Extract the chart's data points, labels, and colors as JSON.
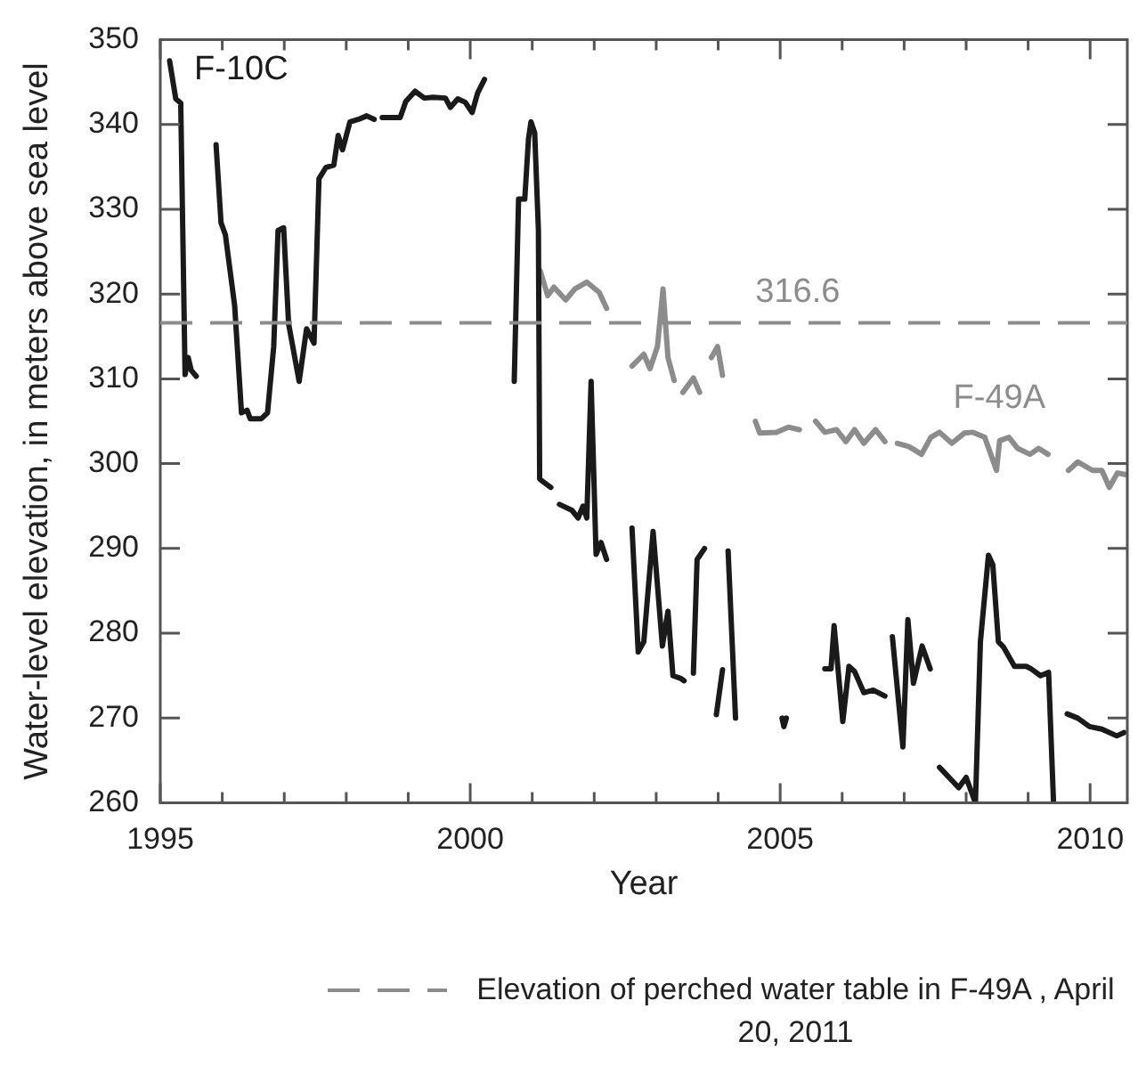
{
  "chart_data": {
    "type": "line",
    "xlabel": "Year",
    "ylabel": "Water-level elevation, in meters above sea level",
    "xlim": [
      1995,
      2010.6
    ],
    "xticks": [
      1995,
      {
        "value": 1996,
        "label": null
      },
      {
        "value": 1997,
        "label": null
      },
      {
        "value": 1998,
        "label": null
      },
      {
        "value": 1999,
        "label": null
      },
      2000,
      {
        "value": 2001,
        "label": null
      },
      {
        "value": 2002,
        "label": null
      },
      {
        "value": 2003,
        "label": null
      },
      {
        "value": 2004,
        "label": null
      },
      2005,
      {
        "value": 2006,
        "label": null
      },
      {
        "value": 2007,
        "label": null
      },
      {
        "value": 2008,
        "label": null
      },
      {
        "value": 2009,
        "label": null
      },
      2010
    ],
    "ylim": [
      260,
      350
    ],
    "yticks": [
      260,
      270,
      280,
      290,
      300,
      310,
      320,
      330,
      340,
      350
    ],
    "series": [
      {
        "name": "F-10C",
        "color": "#1a1a1a",
        "x": [
          1995.15,
          1995.25,
          1995.33,
          1995.4,
          1995.45,
          1995.5,
          1995.58,
          1995.75,
          1995.9,
          1995.98,
          1996.05,
          1996.2,
          1996.31,
          1996.4,
          1996.45,
          1996.63,
          1996.73,
          1996.83,
          1996.9,
          1996.99,
          1997.07,
          1997.24,
          1997.36,
          1997.48,
          1997.56,
          1997.67,
          1997.8,
          1997.87,
          1997.94,
          1998.06,
          1998.2,
          1998.33,
          1998.45,
          1998.52,
          1998.58,
          1998.87,
          1998.96,
          1999.11,
          1999.26,
          1999.4,
          1999.6,
          1999.68,
          1999.8,
          1999.92,
          2000.03,
          2000.12,
          2000.23,
          2000.5,
          2000.71,
          2000.78,
          2000.88,
          2000.94,
          2000.98,
          2001.04,
          2001.1,
          2001.12,
          2001.17,
          2001.3,
          2001.37,
          2001.44,
          2001.64,
          2001.74,
          2001.82,
          2001.88,
          2001.95,
          2002.03,
          2002.11,
          2002.2,
          2002.4,
          2002.61,
          2002.71,
          2002.8,
          2002.95,
          2003.1,
          2003.19,
          2003.27,
          2003.39,
          2003.45,
          2003.52,
          2003.6,
          2003.66,
          2003.78,
          2003.88,
          2003.97,
          2004.07,
          2004.12,
          2004.16,
          2004.28,
          2004.6,
          2005.03,
          2005.06,
          2005.1,
          2005.4,
          2005.72,
          2005.82,
          2005.87,
          2006.01,
          2006.11,
          2006.2,
          2006.35,
          2006.5,
          2006.69,
          2006.75,
          2006.81,
          2006.98,
          2007.06,
          2007.15,
          2007.29,
          2007.42,
          2007.5,
          2007.57,
          2007.88,
          2008.0,
          2008.15,
          2008.23,
          2008.36,
          2008.43,
          2008.52,
          2008.6,
          2008.78,
          2008.97,
          2009.05,
          2009.2,
          2009.33,
          2009.41,
          2009.5,
          2009.63,
          2009.8,
          2009.99,
          2010.19,
          2010.43,
          2010.55
        ],
        "values": [
          347.5,
          343,
          342.5,
          310.5,
          312.5,
          311,
          310.3,
          null,
          337.6,
          328.4,
          327,
          318.6,
          306,
          306.3,
          305.3,
          305.3,
          306,
          313.8,
          327.5,
          327.8,
          316.5,
          309.7,
          315.9,
          314.2,
          333.6,
          334.9,
          335.2,
          338.7,
          337,
          340.3,
          340.6,
          341,
          340.6,
          null,
          340.8,
          340.8,
          342.7,
          343.9,
          343.1,
          343.2,
          343.1,
          342,
          343,
          342.6,
          341.4,
          343.7,
          345.3,
          null,
          309.7,
          331.2,
          331.2,
          338.3,
          340.3,
          339,
          327.5,
          298.2,
          297.9,
          297.2,
          null,
          295.2,
          294.5,
          293.6,
          295,
          293.6,
          309.7,
          289.3,
          290.7,
          288.7,
          null,
          292.4,
          277.8,
          279,
          292,
          278.5,
          282.6,
          275,
          274.7,
          274.4,
          null,
          275.3,
          288.7,
          290,
          null,
          270.4,
          275.7,
          null,
          289.7,
          270,
          null,
          270,
          269,
          270,
          null,
          275.8,
          275.8,
          280.9,
          269.6,
          276.1,
          275.5,
          273,
          273.3,
          272.6,
          null,
          279.6,
          266.6,
          281.6,
          274.1,
          278.5,
          275.8,
          null,
          264.2,
          261.8,
          263,
          260,
          279,
          289.2,
          288.1,
          279,
          278.4,
          276.1,
          276.1,
          275.8,
          275,
          275.4,
          260,
          null,
          270.5,
          270,
          269,
          268.7,
          267.9,
          268.3
        ]
      },
      {
        "name": "F-49A",
        "color": "#8c8c8c",
        "x": [
          2001.13,
          2001.25,
          2001.35,
          2001.54,
          2001.69,
          2001.88,
          2002.08,
          2002.2,
          2002.4,
          2002.61,
          2002.8,
          2002.9,
          2003.02,
          2003.11,
          2003.19,
          2003.29,
          2003.36,
          2003.43,
          2003.6,
          2003.7,
          2003.8,
          2003.89,
          2003.99,
          2004.07,
          2004.3,
          2004.6,
          2004.67,
          2004.94,
          2005.13,
          2005.31,
          2005.45,
          2005.57,
          2005.72,
          2005.91,
          2006.06,
          2006.2,
          2006.35,
          2006.54,
          2006.69,
          2006.8,
          2006.89,
          2007.08,
          2007.28,
          2007.43,
          2007.57,
          2007.77,
          2007.97,
          2008.11,
          2008.3,
          2008.49,
          2008.54,
          2008.69,
          2008.83,
          2009.03,
          2009.17,
          2009.32,
          2009.5,
          2009.65,
          2009.8,
          2010.04,
          2010.19,
          2010.31,
          2010.44,
          2010.58
        ],
        "values": [
          322.7,
          319.8,
          320.8,
          319.3,
          320.6,
          321.4,
          320.2,
          318.3,
          null,
          311.5,
          312.9,
          311.2,
          313.8,
          320.6,
          312.5,
          309.8,
          null,
          308.4,
          310.1,
          308.4,
          null,
          312.5,
          313.8,
          310.4,
          null,
          305,
          303.6,
          303.7,
          304.3,
          304,
          null,
          305,
          303.7,
          304,
          302.6,
          304,
          302.4,
          304,
          302.6,
          null,
          302.4,
          302,
          301.1,
          303.1,
          303.7,
          302.4,
          303.6,
          303.7,
          303.1,
          299.2,
          302.7,
          303.1,
          301.8,
          301.1,
          301.8,
          301.1,
          null,
          299.2,
          300.2,
          299.2,
          299.2,
          297.2,
          298.9,
          298.7
        ]
      }
    ],
    "ref_lines": [
      {
        "axis": "y",
        "value": 316.6,
        "label": "Elevation of perched water table in F-49A , April 20, 2011",
        "color": "#8c8c8c",
        "line_style": "dashed"
      }
    ],
    "annotations": [
      {
        "text": "316.6",
        "x": 2004.6,
        "y": 316.6
      }
    ]
  }
}
